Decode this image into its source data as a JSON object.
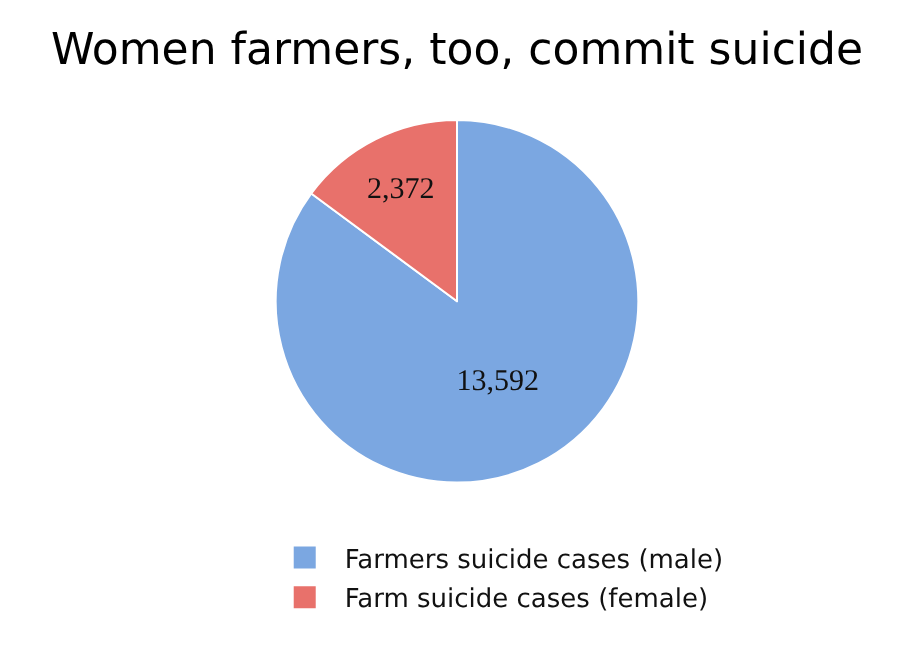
{
  "chart_data": {
    "type": "pie",
    "title": "Women farmers, too, commit suicide",
    "categories": [
      "Farmers suicide cases (male)",
      "Farm suicide cases (female)"
    ],
    "values": [
      13592,
      2372
    ],
    "colors": [
      "#7ba7e1",
      "#e8716b"
    ],
    "value_labels": [
      "13,592",
      "2,372"
    ],
    "legend": "bottom"
  }
}
